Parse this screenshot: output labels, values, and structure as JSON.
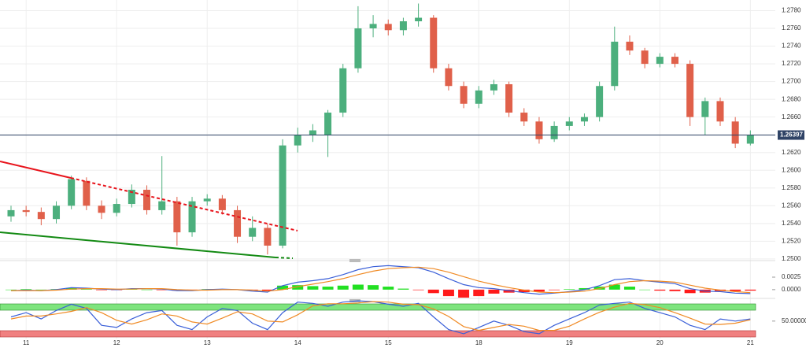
{
  "chart_data": [
    {
      "type": "candlestick",
      "categories": [
        null,
        "11",
        null,
        null,
        null,
        null,
        null,
        "12",
        null,
        null,
        null,
        null,
        null,
        "13",
        null,
        null,
        null,
        null,
        null,
        "14",
        null,
        null,
        null,
        null,
        null,
        "15",
        null,
        null,
        null,
        null,
        null,
        "18",
        null,
        null,
        null,
        null,
        null,
        "19",
        null,
        null,
        null,
        null,
        null,
        "20",
        null,
        null,
        null,
        null,
        null,
        "21"
      ],
      "open": [
        1.2548,
        1.2555,
        1.2553,
        1.2545,
        1.256,
        1.2588,
        1.256,
        1.2552,
        1.2562,
        1.2578,
        1.2555,
        1.2565,
        1.253,
        1.2565,
        1.2568,
        1.2555,
        1.2525,
        1.2535,
        1.2515,
        1.2628,
        1.264,
        1.264,
        1.2665,
        1.2715,
        1.276,
        1.2765,
        1.2758,
        1.2768,
        1.2772,
        1.2715,
        1.2695,
        1.2675,
        1.269,
        1.2697,
        1.2665,
        1.2655,
        1.2635,
        1.265,
        1.2655,
        1.266,
        1.2695,
        1.2745,
        1.2735,
        1.272,
        1.2728,
        1.272,
        1.266,
        1.2678,
        1.2655,
        1.263
      ],
      "high": [
        1.256,
        1.256,
        1.2558,
        1.2565,
        1.2594,
        1.2592,
        1.2566,
        1.2568,
        1.2584,
        1.2583,
        1.2616,
        1.257,
        1.257,
        1.2573,
        1.2572,
        1.256,
        1.2548,
        1.254,
        1.2635,
        1.2648,
        1.2652,
        1.2668,
        1.272,
        1.2785,
        1.2775,
        1.277,
        1.2772,
        1.2788,
        1.2775,
        1.272,
        1.27,
        1.2695,
        1.2702,
        1.27,
        1.267,
        1.266,
        1.2655,
        1.266,
        1.2664,
        1.27,
        1.2762,
        1.2752,
        1.2738,
        1.2732,
        1.2732,
        1.2724,
        1.2682,
        1.2682,
        1.266,
        1.2645
      ],
      "low": [
        1.2542,
        1.2548,
        1.2538,
        1.254,
        1.2556,
        1.2555,
        1.2545,
        1.2548,
        1.2558,
        1.255,
        1.255,
        1.2515,
        1.2525,
        1.256,
        1.255,
        1.2518,
        1.252,
        1.2505,
        1.2512,
        1.262,
        1.2632,
        1.2615,
        1.266,
        1.271,
        1.275,
        1.2752,
        1.2752,
        1.2762,
        1.271,
        1.269,
        1.267,
        1.267,
        1.2685,
        1.266,
        1.265,
        1.263,
        1.2632,
        1.2645,
        1.265,
        1.2655,
        1.269,
        1.273,
        1.2715,
        1.2716,
        1.2716,
        1.265,
        1.264,
        1.265,
        1.2625,
        1.2628
      ],
      "close": [
        1.2555,
        1.2553,
        1.2545,
        1.256,
        1.259,
        1.256,
        1.2552,
        1.2562,
        1.2578,
        1.2555,
        1.2565,
        1.253,
        1.2565,
        1.2568,
        1.2555,
        1.2525,
        1.2535,
        1.2515,
        1.2628,
        1.264,
        1.2645,
        1.2665,
        1.2715,
        1.276,
        1.2765,
        1.2758,
        1.2768,
        1.2772,
        1.2715,
        1.2695,
        1.2675,
        1.269,
        1.2697,
        1.2665,
        1.2655,
        1.2635,
        1.265,
        1.2655,
        1.266,
        1.2695,
        1.2745,
        1.2735,
        1.272,
        1.2728,
        1.272,
        1.266,
        1.2678,
        1.2655,
        1.263,
        1.264
      ],
      "up_color": "#4caf7d",
      "down_color": "#e0604a",
      "last_price": 1.26397,
      "last_price_color": "#2f4366",
      "ylim": [
        1.2499,
        1.2792
      ],
      "yticks": [
        {
          "value": 1.25,
          "label": "1.2500"
        },
        {
          "value": 1.252,
          "label": "1.2520"
        },
        {
          "value": 1.254,
          "label": "1.2540"
        },
        {
          "value": 1.256,
          "label": "1.2560"
        },
        {
          "value": 1.258,
          "label": "1.2580"
        },
        {
          "value": 1.26,
          "label": "1.2600"
        },
        {
          "value": 1.262,
          "label": "1.2620"
        },
        {
          "value": 1.264,
          "label": "1.2640"
        },
        {
          "value": 1.266,
          "label": "1.2660"
        },
        {
          "value": 1.268,
          "label": "1.2680"
        },
        {
          "value": 1.27,
          "label": "1.2700"
        },
        {
          "value": 1.272,
          "label": "1.2720"
        },
        {
          "value": 1.274,
          "label": "1.2740"
        },
        {
          "value": 1.276,
          "label": "1.2760"
        },
        {
          "value": 1.278,
          "label": "1.2780"
        }
      ],
      "grid": true
    },
    {
      "type": "macd",
      "histogram": [
        0,
        0.0001,
        0,
        0.0001,
        0.0003,
        0.0001,
        -0.0001,
        -0.0001,
        0.0001,
        0,
        -0.0001,
        -0.0002,
        -0.0001,
        0.0001,
        0.0001,
        0,
        -0.0002,
        -0.0002,
        0.0008,
        0.0009,
        0.0007,
        0.0006,
        0.0008,
        0.001,
        0.0009,
        0.0006,
        0.0002,
        -0.0001,
        -0.0007,
        -0.0013,
        -0.0016,
        -0.0013,
        -0.0008,
        -0.0006,
        -0.0005,
        -0.0004,
        -0.0001,
        0.0001,
        0.0003,
        0.0006,
        0.001,
        0.0006,
        0,
        -0.0002,
        -0.0003,
        -0.0007,
        -0.0006,
        -0.0003,
        -0.0003,
        -0.0002
      ],
      "positive_color": "#22e022",
      "negative_color": "#ff1a1a",
      "series": [
        {
          "color": "#3a5fd8",
          "values": [
            -0.0002,
            -0.0001,
            -0.0002,
            0,
            0.0004,
            0.0003,
            0.0001,
            0,
            0.0002,
            0.0002,
            0.0001,
            -0.0002,
            -0.0002,
            0,
            0.0001,
            0,
            -0.0003,
            -0.0005,
            0.0008,
            0.0015,
            0.0018,
            0.0022,
            0.003,
            0.004,
            0.0046,
            0.0048,
            0.0046,
            0.0044,
            0.0035,
            0.0022,
            0.001,
            0.0004,
            0.0002,
            -0.0002,
            -0.0006,
            -0.0009,
            -0.0007,
            -0.0004,
            0,
            0.0008,
            0.002,
            0.0022,
            0.0018,
            0.0015,
            0.0012,
            0.0002,
            -0.0003,
            -0.0004,
            -0.0007,
            -0.0008
          ]
        },
        {
          "color": "#f08a24",
          "values": [
            -0.0002,
            -0.0002,
            -0.0002,
            -0.0001,
            0.0001,
            0.0002,
            0.0002,
            0.0001,
            0.0001,
            0.0002,
            0.0002,
            0,
            -0.0001,
            -0.0001,
            0,
            0,
            -0.0001,
            -0.0003,
            0,
            0.0006,
            0.0011,
            0.0016,
            0.0022,
            0.003,
            0.0037,
            0.0042,
            0.0044,
            0.0045,
            0.0042,
            0.0035,
            0.0026,
            0.0017,
            0.001,
            0.0004,
            -0.0001,
            -0.0005,
            -0.0006,
            -0.0005,
            -0.0003,
            0.0002,
            0.001,
            0.0016,
            0.0018,
            0.0017,
            0.0015,
            0.0009,
            0.0003,
            -0.0001,
            -0.0004,
            -0.0006
          ]
        }
      ],
      "ylim": [
        -0.0016,
        0.0055
      ],
      "yticks": [
        {
          "value": 0,
          "label": "0.0000"
        },
        {
          "value": 0.0025,
          "label": "0.0025"
        }
      ]
    },
    {
      "type": "line",
      "series": [
        {
          "color": "#3a5fd8",
          "values": [
            60,
            70,
            55,
            75,
            90,
            80,
            40,
            35,
            55,
            70,
            75,
            40,
            30,
            60,
            80,
            75,
            45,
            30,
            70,
            95,
            92,
            85,
            95,
            98,
            96,
            90,
            85,
            92,
            60,
            30,
            20,
            35,
            50,
            40,
            25,
            20,
            40,
            55,
            70,
            88,
            92,
            95,
            80,
            70,
            60,
            40,
            30,
            55,
            50,
            55
          ]
        },
        {
          "color": "#f08a24",
          "values": [
            55,
            62,
            62,
            67,
            73,
            82,
            70,
            52,
            43,
            53,
            67,
            62,
            48,
            43,
            57,
            72,
            67,
            50,
            48,
            65,
            86,
            91,
            91,
            93,
            96,
            95,
            90,
            89,
            79,
            61,
            37,
            28,
            35,
            42,
            38,
            28,
            28,
            38,
            55,
            71,
            83,
            92,
            89,
            82,
            70,
            57,
            43,
            42,
            45,
            53
          ]
        }
      ],
      "ylim": [
        -13.7,
        100
      ],
      "yticks": [
        {
          "value": 50,
          "label": "50.00000"
        }
      ]
    }
  ]
}
